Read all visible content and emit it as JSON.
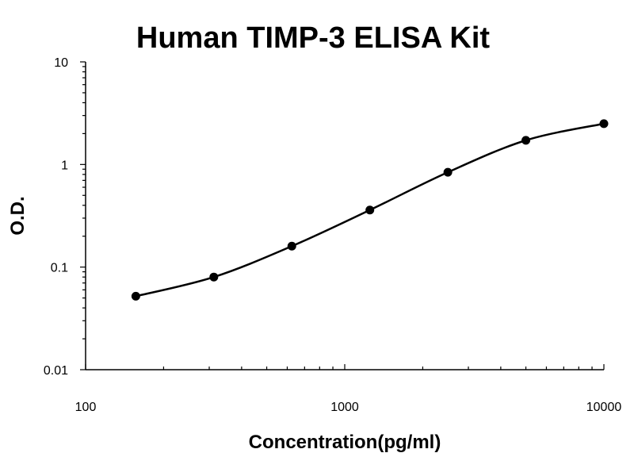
{
  "chart_data": {
    "type": "scatter",
    "title": "Human TIMP-3 ELISA Kit",
    "xlabel": "Concentration(pg/ml)",
    "ylabel": "O.D.",
    "x_scale": "log",
    "y_scale": "log",
    "xlim": [
      100,
      10000
    ],
    "ylim": [
      0.01,
      10
    ],
    "x_tick_labels": [
      "100",
      "1000",
      "10000"
    ],
    "y_tick_labels": [
      "0.01",
      "0.1",
      "1",
      "10"
    ],
    "grid": false,
    "legend": "none",
    "series": [
      {
        "x": [
          156.25,
          312.5,
          625,
          1250,
          2500,
          5000,
          10000
        ],
        "y": [
          0.052,
          0.08,
          0.16,
          0.36,
          0.84,
          1.72,
          2.5
        ]
      }
    ]
  }
}
